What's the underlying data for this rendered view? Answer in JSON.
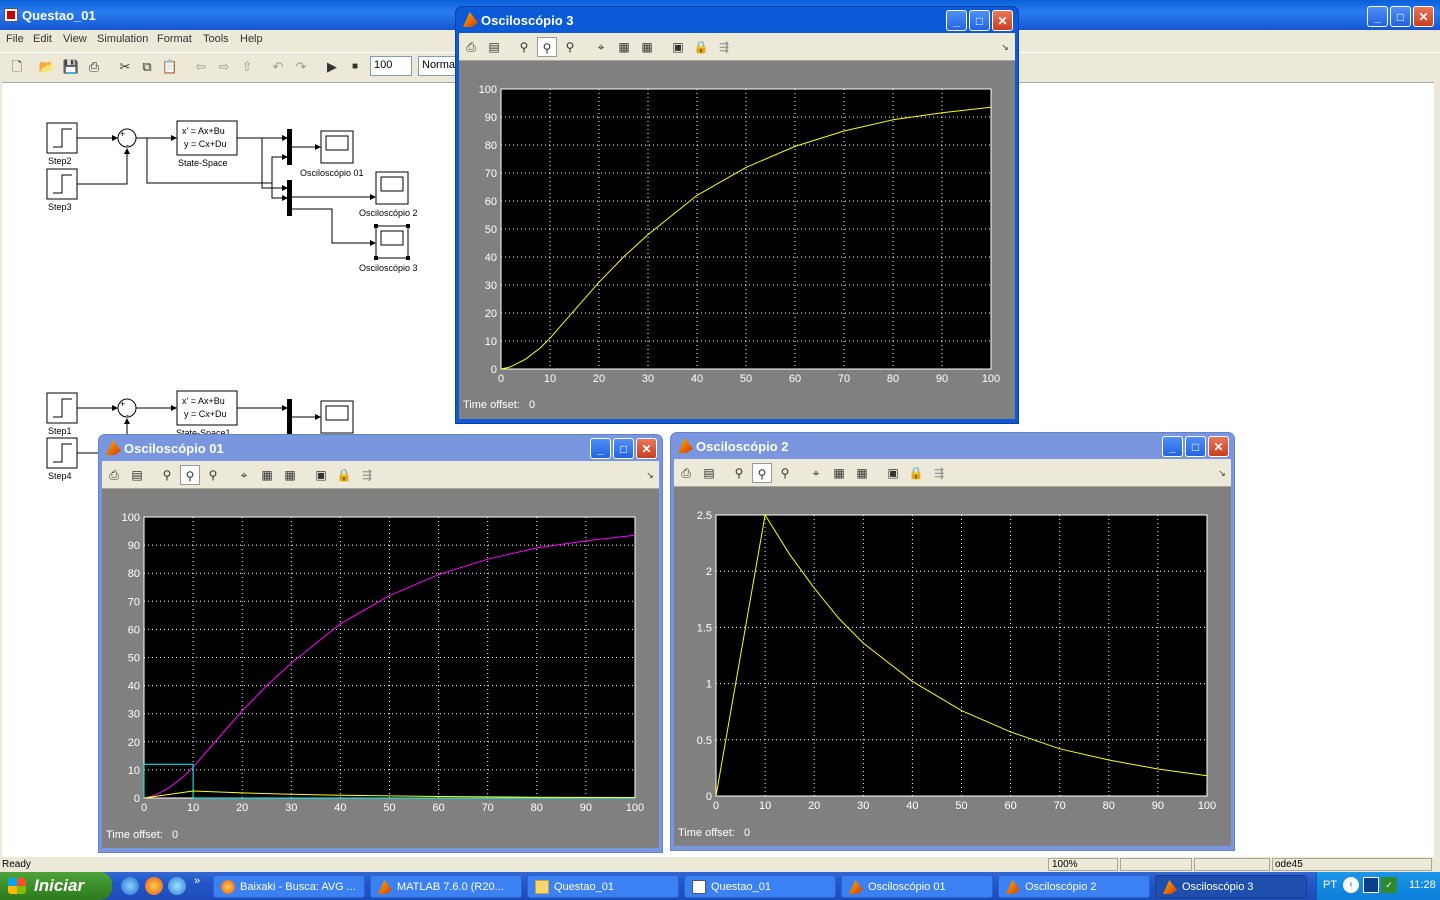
{
  "main_window": {
    "title": "Questao_01",
    "menu": [
      "File",
      "Edit",
      "View",
      "Simulation",
      "Format",
      "Tools",
      "Help"
    ],
    "stop_time": "100",
    "sim_mode": "Normal",
    "status": {
      "left": "Ready",
      "zoom": "100%",
      "solver": "ode45"
    }
  },
  "model": {
    "blocks": {
      "step2": "Step2",
      "step3": "Step3",
      "step1": "Step1",
      "step4": "Step4",
      "ss_line1": "x' = Ax+Bu",
      "ss_line2": "y = Cx+Du",
      "ss_name": "State-Space",
      "ss1_name": "State-Space1",
      "scope01": "Osciloscópio 01",
      "scope2": "Osciloscópio 2",
      "scope3": "Osciloscópio 3",
      "sum_plus": "+",
      "sum_minus": "-"
    }
  },
  "scopes": {
    "scope3": {
      "title": "Osciloscópio 3",
      "time_offset_label": "Time offset:",
      "time_offset_value": "0"
    },
    "scope01": {
      "title": "Osciloscópio 01",
      "time_offset_label": "Time offset:",
      "time_offset_value": "0"
    },
    "scope2": {
      "title": "Osciloscópio 2",
      "time_offset_label": "Time offset:",
      "time_offset_value": "0"
    }
  },
  "taskbar": {
    "start": "Iniciar",
    "tasks": [
      "Baixaki - Busca: AVG ...",
      "MATLAB  7.6.0 (R20...",
      "Questao_01",
      "Questao_01",
      "Osciloscópio 01",
      "Osciloscópio 2",
      "Osciloscópio 3"
    ],
    "lang": "PT",
    "clock": "11:28"
  },
  "chart_data": [
    {
      "type": "line",
      "window": "Osciloscópio 3",
      "xlim": [
        0,
        100
      ],
      "ylim": [
        0,
        100
      ],
      "xticks": [
        0,
        10,
        20,
        30,
        40,
        50,
        60,
        70,
        80,
        90,
        100
      ],
      "yticks": [
        0,
        10,
        20,
        30,
        40,
        50,
        60,
        70,
        80,
        90,
        100
      ],
      "grid": true,
      "series": [
        {
          "color": "#ffff00",
          "x": [
            0,
            2,
            5,
            8,
            10,
            15,
            20,
            25,
            30,
            40,
            50,
            60,
            70,
            80,
            90,
            100
          ],
          "y": [
            0,
            0.8,
            3.5,
            7.5,
            11,
            21,
            31,
            40,
            48,
            62,
            72,
            79.5,
            85,
            89,
            91.5,
            93.5
          ]
        }
      ]
    },
    {
      "type": "line",
      "window": "Osciloscópio 01",
      "xlim": [
        0,
        100
      ],
      "ylim": [
        0,
        100
      ],
      "xticks": [
        0,
        10,
        20,
        30,
        40,
        50,
        60,
        70,
        80,
        90,
        100
      ],
      "yticks": [
        0,
        10,
        20,
        30,
        40,
        50,
        60,
        70,
        80,
        90,
        100
      ],
      "grid": true,
      "series": [
        {
          "color": "#ff00ff",
          "x": [
            0,
            2,
            5,
            8,
            10,
            15,
            20,
            25,
            30,
            40,
            50,
            60,
            70,
            80,
            90,
            100
          ],
          "y": [
            0,
            0.8,
            3.5,
            7.5,
            11,
            21,
            31,
            40,
            48,
            62,
            72,
            79.5,
            85,
            89,
            91.5,
            93.5
          ]
        },
        {
          "color": "#00ffff",
          "x": [
            0,
            0,
            10,
            10,
            100
          ],
          "y": [
            0,
            12,
            12,
            0,
            0
          ]
        },
        {
          "color": "#ffff00",
          "x": [
            0,
            10,
            20,
            30,
            40,
            50,
            60,
            70,
            80,
            90,
            100
          ],
          "y": [
            0,
            2.5,
            1.8,
            1.3,
            1.0,
            0.75,
            0.55,
            0.4,
            0.3,
            0.22,
            0.18
          ]
        }
      ]
    },
    {
      "type": "line",
      "window": "Osciloscópio 2",
      "xlim": [
        0,
        100
      ],
      "ylim": [
        0,
        2.5
      ],
      "xticks": [
        0,
        10,
        20,
        30,
        40,
        50,
        60,
        70,
        80,
        90,
        100
      ],
      "yticks": [
        0,
        0.5,
        1,
        1.5,
        2,
        2.5
      ],
      "grid": true,
      "series": [
        {
          "color": "#ffff00",
          "x": [
            0,
            10,
            15,
            20,
            25,
            30,
            40,
            50,
            60,
            70,
            80,
            90,
            100
          ],
          "y": [
            0,
            2.5,
            2.15,
            1.85,
            1.58,
            1.36,
            1.02,
            0.76,
            0.57,
            0.42,
            0.32,
            0.24,
            0.18
          ]
        }
      ]
    }
  ]
}
